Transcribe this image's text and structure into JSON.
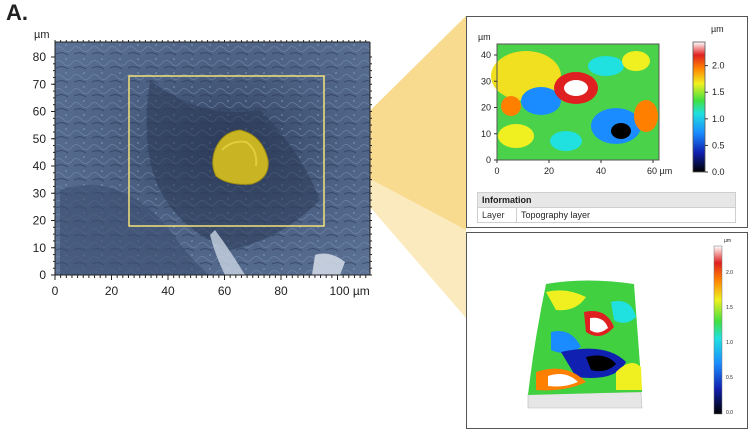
{
  "panel_label": "A.",
  "sem": {
    "y_unit": "µm",
    "y_ticks": [
      "0",
      "10",
      "20",
      "30",
      "40",
      "50",
      "60",
      "70",
      "80"
    ],
    "x_ticks": [
      "0",
      "20",
      "40",
      "60",
      "80",
      "100 µm"
    ]
  },
  "map2d": {
    "y_unit": "µm",
    "y_ticks": [
      "0",
      "10",
      "20",
      "30",
      "40"
    ],
    "x_ticks": [
      "0",
      "20",
      "40",
      "60 µm"
    ],
    "colorbar_unit": "µm",
    "colorbar_ticks": [
      "0.0",
      "0.5",
      "1.0",
      "1.5",
      "2.0"
    ]
  },
  "info": {
    "header": "Information",
    "row_label": "Layer",
    "row_value": "Topography layer"
  },
  "view3d": {
    "colorbar_unit": "µm",
    "colorbar_ticks": [
      "0.0",
      "0.5",
      "1.0",
      "1.5",
      "2.0"
    ]
  },
  "colors": {
    "highlight": "#f0c040",
    "frame": "#f3e27a",
    "sem_base": "#44587a"
  }
}
